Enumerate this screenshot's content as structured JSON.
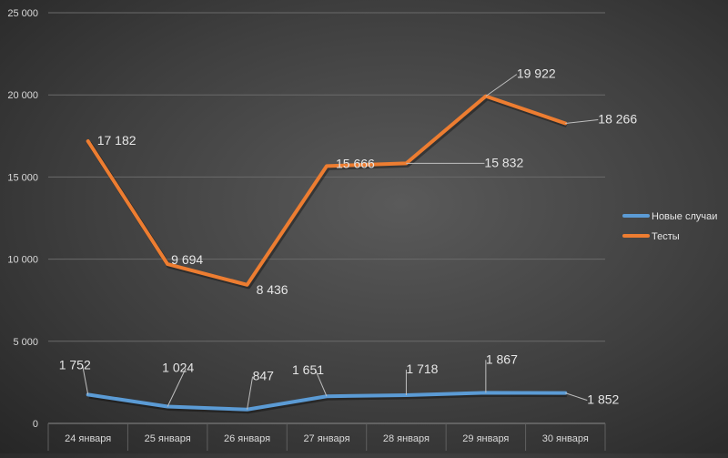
{
  "chart_data": {
    "type": "line",
    "categories": [
      "24 января",
      "25 января",
      "26 января",
      "27 января",
      "28 января",
      "29 января",
      "30 января"
    ],
    "series": [
      {
        "name": "Новые случаи",
        "values": [
          1752,
          1024,
          847,
          1651,
          1718,
          1867,
          1852
        ],
        "labels": [
          "1 752",
          "1 024",
          "847",
          "1 651",
          "1 718",
          "1 867",
          "1 852"
        ],
        "color": "#5b9bd5"
      },
      {
        "name": "Тесты",
        "values": [
          17182,
          9694,
          8436,
          15666,
          15832,
          19922,
          18266
        ],
        "labels": [
          "17 182",
          "9 694",
          "8 436",
          "15 666",
          "15 832",
          "19 922",
          "18 266"
        ],
        "color": "#ed7d31"
      }
    ],
    "y_ticks": [
      0,
      5000,
      10000,
      15000,
      20000,
      25000
    ],
    "y_tick_labels": [
      "0",
      "5 000",
      "10 000",
      "15 000",
      "20 000",
      "25 000"
    ],
    "ylim": [
      0,
      25000
    ],
    "grid": true,
    "legend_position": "right",
    "title": "",
    "xlabel": "",
    "ylabel": ""
  }
}
